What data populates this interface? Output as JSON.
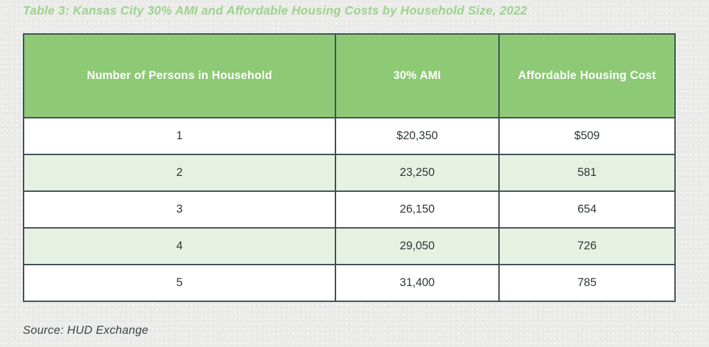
{
  "title": "Table 3: Kansas City 30% AMI and Affordable Housing Costs by Household Size, 2022",
  "source_note": "Source: HUD Exchange",
  "colors": {
    "title_green": "#9ed28c",
    "header_green": "#8ec976",
    "alt_row_green": "#e7f1e1",
    "border_slate": "#3d4e55",
    "body_text": "#2e3539",
    "page_background": "#ebecea"
  },
  "chart_data": {
    "type": "table",
    "title": "Table 3: Kansas City 30% AMI and Affordable Housing Costs by Household Size, 2022",
    "columns": [
      "Number of Persons in Household",
      "30% AMI",
      "Affordable Housing Cost"
    ],
    "rows": [
      [
        "1",
        "$20,350",
        "$509"
      ],
      [
        "2",
        "23,250",
        "581"
      ],
      [
        "3",
        "26,150",
        "654"
      ],
      [
        "4",
        "29,050",
        "726"
      ],
      [
        "5",
        "31,400",
        "785"
      ]
    ]
  }
}
